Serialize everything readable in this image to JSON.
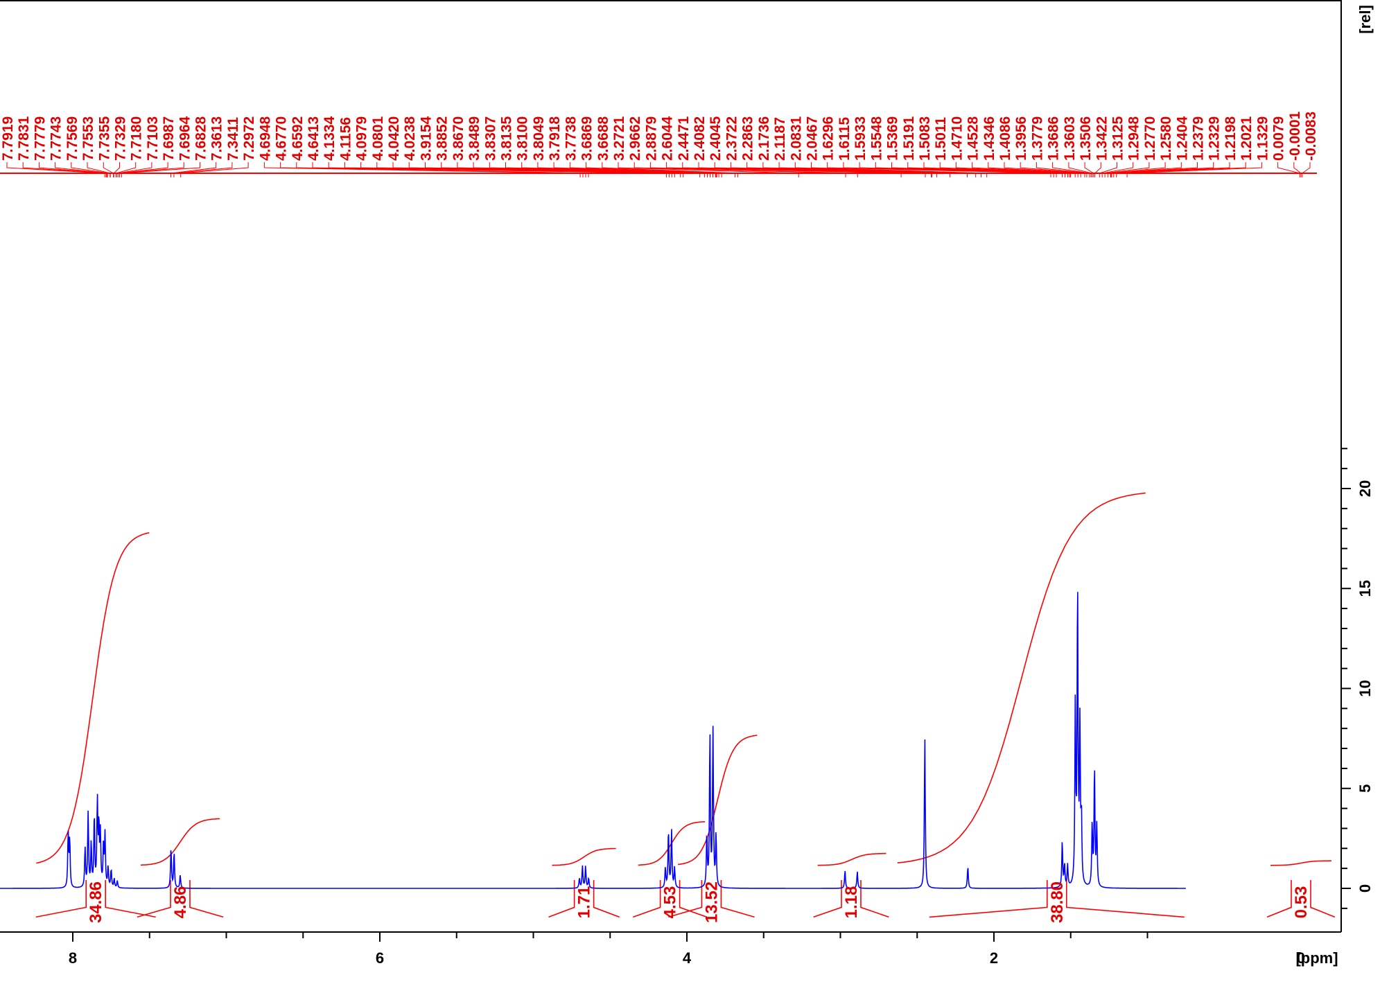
{
  "chart_data": {
    "type": "line",
    "title": "",
    "xlabel": "[ppm]",
    "ylabel": "[rel]",
    "xlim": [
      9.05,
      0.75
    ],
    "ylim": [
      -1.1,
      22.2
    ],
    "x_reversed": true,
    "x_major_ticks": [
      8,
      6,
      4,
      2,
      0
    ],
    "x_minor_step": 0.5,
    "y_ticks": [
      0,
      5,
      10,
      15,
      20
    ],
    "y_axis_side": "right",
    "colors": {
      "spectrum": "#0000ff",
      "integral": "#ff0000",
      "axis": "#000000"
    },
    "peak_labels": [
      "7.7919",
      "7.7831",
      "7.7779",
      "7.7743",
      "7.7569",
      "7.7553",
      "7.7355",
      "7.7329",
      "7.7180",
      "7.7103",
      "7.6987",
      "7.6964",
      "7.6828",
      "7.3613",
      "7.3411",
      "7.2972",
      "4.6948",
      "4.6770",
      "4.6592",
      "4.6413",
      "4.1334",
      "4.1156",
      "4.0979",
      "4.0801",
      "4.0420",
      "4.0238",
      "3.9154",
      "3.8852",
      "3.8670",
      "3.8489",
      "3.8307",
      "3.8135",
      "3.8100",
      "3.8049",
      "3.7918",
      "3.7738",
      "3.6869",
      "3.6688",
      "3.2721",
      "2.9662",
      "2.8879",
      "2.6044",
      "2.4471",
      "2.4082",
      "2.4045",
      "2.3722",
      "2.2863",
      "2.1736",
      "2.1187",
      "2.0831",
      "2.0467",
      "1.6296",
      "1.6115",
      "1.5933",
      "1.5548",
      "1.5369",
      "1.5191",
      "1.5083",
      "1.5011",
      "1.4710",
      "1.4528",
      "1.4346",
      "1.4086",
      "1.3956",
      "1.3779",
      "1.3686",
      "1.3603",
      "1.3506",
      "1.3422",
      "1.3125",
      "1.2948",
      "1.2770",
      "1.2580",
      "1.2404",
      "1.2379",
      "1.2329",
      "1.2198",
      "1.2021",
      "1.1329",
      "0.0079",
      "-0.0001",
      "-0.0083"
    ],
    "peaks": [
      {
        "ppm": 8.03,
        "height": 2.7
      },
      {
        "ppm": 8.02,
        "height": 2.4
      },
      {
        "ppm": 7.92,
        "height": 2.0
      },
      {
        "ppm": 7.9,
        "height": 3.7
      },
      {
        "ppm": 7.88,
        "height": 2.2
      },
      {
        "ppm": 7.86,
        "height": 3.6
      },
      {
        "ppm": 7.84,
        "height": 4.2
      },
      {
        "ppm": 7.83,
        "height": 3.0
      },
      {
        "ppm": 7.82,
        "height": 2.6
      },
      {
        "ppm": 7.8,
        "height": 2.1
      },
      {
        "ppm": 7.79,
        "height": 2.6
      },
      {
        "ppm": 7.77,
        "height": 1.0
      },
      {
        "ppm": 7.75,
        "height": 0.9
      },
      {
        "ppm": 7.73,
        "height": 0.45
      },
      {
        "ppm": 7.71,
        "height": 0.35
      },
      {
        "ppm": 7.36,
        "height": 2.0
      },
      {
        "ppm": 7.34,
        "height": 1.8
      },
      {
        "ppm": 7.3,
        "height": 0.65
      },
      {
        "ppm": 4.7,
        "height": 0.5
      },
      {
        "ppm": 4.68,
        "height": 1.1
      },
      {
        "ppm": 4.66,
        "height": 1.1
      },
      {
        "ppm": 4.64,
        "height": 0.5
      },
      {
        "ppm": 4.14,
        "height": 1.0
      },
      {
        "ppm": 4.12,
        "height": 2.9
      },
      {
        "ppm": 4.1,
        "height": 2.9
      },
      {
        "ppm": 4.08,
        "height": 1.0
      },
      {
        "ppm": 3.87,
        "height": 2.6
      },
      {
        "ppm": 3.85,
        "height": 7.7
      },
      {
        "ppm": 3.83,
        "height": 7.8
      },
      {
        "ppm": 3.81,
        "height": 2.6
      },
      {
        "ppm": 2.97,
        "height": 0.9
      },
      {
        "ppm": 2.89,
        "height": 0.85
      },
      {
        "ppm": 2.45,
        "height": 7.6
      },
      {
        "ppm": 2.17,
        "height": 1.1
      },
      {
        "ppm": 1.555,
        "height": 2.3
      },
      {
        "ppm": 1.54,
        "height": 1.1
      },
      {
        "ppm": 1.52,
        "height": 1.1
      },
      {
        "ppm": 1.47,
        "height": 9.0
      },
      {
        "ppm": 1.455,
        "height": 15.0
      },
      {
        "ppm": 1.44,
        "height": 7.8
      },
      {
        "ppm": 1.43,
        "height": 3.2
      },
      {
        "ppm": 1.36,
        "height": 3.0
      },
      {
        "ppm": 1.345,
        "height": 6.0
      },
      {
        "ppm": 1.33,
        "height": 3.0
      },
      {
        "ppm": 0.0,
        "height": 0.95
      }
    ],
    "integrals": [
      {
        "from": 8.08,
        "to": 7.66,
        "y_start": 1.15,
        "y_end": 17.9,
        "label": "34.86",
        "label_ppm": 7.85
      },
      {
        "from": 7.4,
        "to": 7.2,
        "y_start": 1.15,
        "y_end": 3.5,
        "label": "4.86",
        "label_ppm": 7.3
      },
      {
        "from": 4.72,
        "to": 4.62,
        "y_start": 1.15,
        "y_end": 2.0,
        "label": "1.71",
        "label_ppm": 4.67
      },
      {
        "from": 4.16,
        "to": 4.04,
        "y_start": 1.15,
        "y_end": 3.35,
        "label": "4.53",
        "label_ppm": 4.11
      },
      {
        "from": 3.9,
        "to": 3.7,
        "y_start": 1.15,
        "y_end": 7.7,
        "label": "13.52",
        "label_ppm": 3.84
      },
      {
        "from": 2.99,
        "to": 2.86,
        "y_start": 1.15,
        "y_end": 1.75,
        "label": "1.18",
        "label_ppm": 2.93
      },
      {
        "from": 2.47,
        "to": 1.17,
        "y_start": 1.15,
        "y_end": 19.9,
        "label": "38.80",
        "label_ppm": 1.59
      },
      {
        "from": 0.04,
        "to": -0.04,
        "y_start": 1.15,
        "y_end": 1.38,
        "label": "0.53",
        "label_ppm": 0.0
      }
    ]
  }
}
